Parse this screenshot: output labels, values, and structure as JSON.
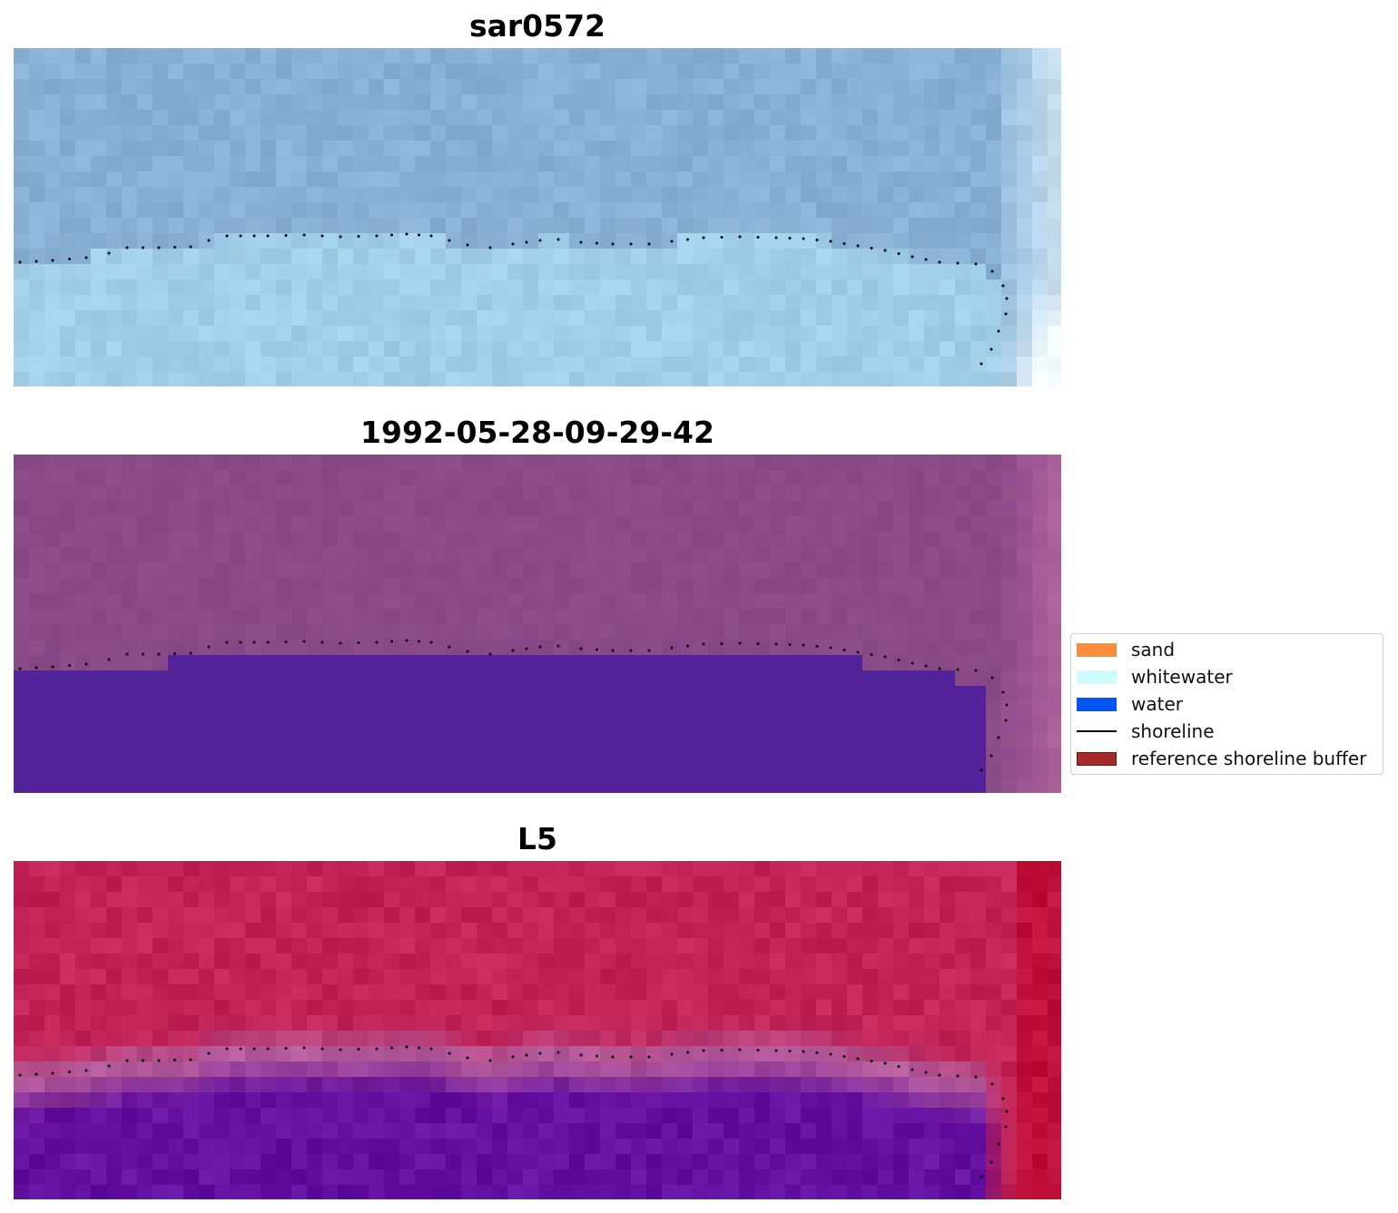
{
  "panels": [
    {
      "id": "sar",
      "title": "sar0572"
    },
    {
      "id": "classified",
      "title": "1992-05-28-09-29-42"
    },
    {
      "id": "index",
      "title": "L5"
    }
  ],
  "legend": {
    "items": [
      {
        "label": "sand",
        "kind": "patch",
        "color": "#ff8c3a"
      },
      {
        "label": "whitewater",
        "kind": "patch",
        "color": "#ccfcfc"
      },
      {
        "label": "water",
        "kind": "patch",
        "color": "#0055f5"
      },
      {
        "label": "shoreline",
        "kind": "line",
        "color": "#000000"
      },
      {
        "label": "reference shoreline buffer",
        "kind": "patch",
        "color": "#a52a2a",
        "edge": "#7a1010"
      }
    ]
  },
  "colors": {
    "sar_land": "#88b0d4",
    "sar_water": "#a4d2ec",
    "sar_corner": "#f4fbff",
    "classified_land": "#8a4a88",
    "classified_water": "#52239a",
    "classified_edge": "#b86aa4",
    "index_land": "#c22458",
    "index_band": "#b45a9a",
    "index_water": "#6410a0",
    "index_edge": "#c0103a",
    "shoreline": "#000000"
  }
}
